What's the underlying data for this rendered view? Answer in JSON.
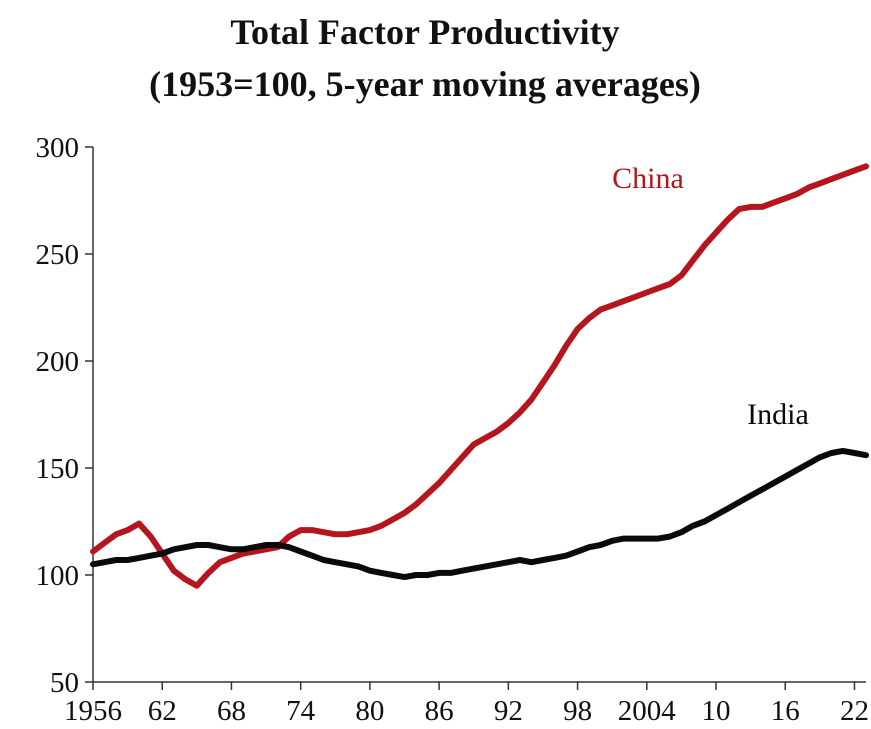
{
  "chart_data": {
    "type": "line",
    "title": "Total Factor Productivity",
    "subtitle": "(1953=100, 5-year moving averages)",
    "xlabel": "",
    "ylabel": "",
    "ylim": [
      50,
      300
    ],
    "xlim": [
      1956,
      2023
    ],
    "yticks": [
      300,
      250,
      200,
      150,
      100,
      50
    ],
    "xticks": [
      {
        "year": 1956,
        "label": "1956"
      },
      {
        "year": 1962,
        "label": "62"
      },
      {
        "year": 1968,
        "label": "68"
      },
      {
        "year": 1974,
        "label": "74"
      },
      {
        "year": 1980,
        "label": "80"
      },
      {
        "year": 1986,
        "label": "86"
      },
      {
        "year": 1992,
        "label": "92"
      },
      {
        "year": 1998,
        "label": "98"
      },
      {
        "year": 2004,
        "label": "2004"
      },
      {
        "year": 2010,
        "label": "10"
      },
      {
        "year": 2016,
        "label": "16"
      },
      {
        "year": 2022,
        "label": "22"
      }
    ],
    "grid": false,
    "legend": "none",
    "series": [
      {
        "name": "China",
        "color": "#b5161e",
        "label_position": "upper-middle",
        "x": [
          1956,
          1957,
          1958,
          1959,
          1960,
          1961,
          1962,
          1963,
          1964,
          1965,
          1966,
          1967,
          1968,
          1969,
          1970,
          1971,
          1972,
          1973,
          1974,
          1975,
          1976,
          1977,
          1978,
          1979,
          1980,
          1981,
          1982,
          1983,
          1984,
          1985,
          1986,
          1987,
          1988,
          1989,
          1990,
          1991,
          1992,
          1993,
          1994,
          1995,
          1996,
          1997,
          1998,
          1999,
          2000,
          2001,
          2002,
          2003,
          2004,
          2005,
          2006,
          2007,
          2008,
          2009,
          2010,
          2011,
          2012,
          2013,
          2014,
          2015,
          2016,
          2017,
          2018,
          2019,
          2020,
          2021,
          2022,
          2023
        ],
        "y": [
          111,
          115,
          119,
          121,
          124,
          118,
          110,
          102,
          98,
          95,
          101,
          106,
          108,
          110,
          111,
          112,
          113,
          118,
          121,
          121,
          120,
          119,
          119,
          120,
          121,
          123,
          126,
          129,
          133,
          138,
          143,
          149,
          155,
          161,
          164,
          167,
          171,
          176,
          182,
          190,
          198,
          207,
          215,
          220,
          224,
          226,
          228,
          230,
          232,
          234,
          236,
          240,
          247,
          254,
          260,
          266,
          271,
          272,
          272,
          274,
          276,
          278,
          281,
          283,
          285,
          287,
          289,
          291
        ]
      },
      {
        "name": "India",
        "color": "#0a0a0a",
        "label_position": "right",
        "x": [
          1956,
          1957,
          1958,
          1959,
          1960,
          1961,
          1962,
          1963,
          1964,
          1965,
          1966,
          1967,
          1968,
          1969,
          1970,
          1971,
          1972,
          1973,
          1974,
          1975,
          1976,
          1977,
          1978,
          1979,
          1980,
          1981,
          1982,
          1983,
          1984,
          1985,
          1986,
          1987,
          1988,
          1989,
          1990,
          1991,
          1992,
          1993,
          1994,
          1995,
          1996,
          1997,
          1998,
          1999,
          2000,
          2001,
          2002,
          2003,
          2004,
          2005,
          2006,
          2007,
          2008,
          2009,
          2010,
          2011,
          2012,
          2013,
          2014,
          2015,
          2016,
          2017,
          2018,
          2019,
          2020,
          2021,
          2022,
          2023
        ],
        "y": [
          105,
          106,
          107,
          107,
          108,
          109,
          110,
          112,
          113,
          114,
          114,
          113,
          112,
          112,
          113,
          114,
          114,
          113,
          111,
          109,
          107,
          106,
          105,
          104,
          102,
          101,
          100,
          99,
          100,
          100,
          101,
          101,
          102,
          103,
          104,
          105,
          106,
          107,
          106,
          107,
          108,
          109,
          111,
          113,
          114,
          116,
          117,
          117,
          117,
          117,
          118,
          120,
          123,
          125,
          128,
          131,
          134,
          137,
          140,
          143,
          146,
          149,
          152,
          155,
          157,
          158,
          157,
          156
        ]
      }
    ]
  }
}
